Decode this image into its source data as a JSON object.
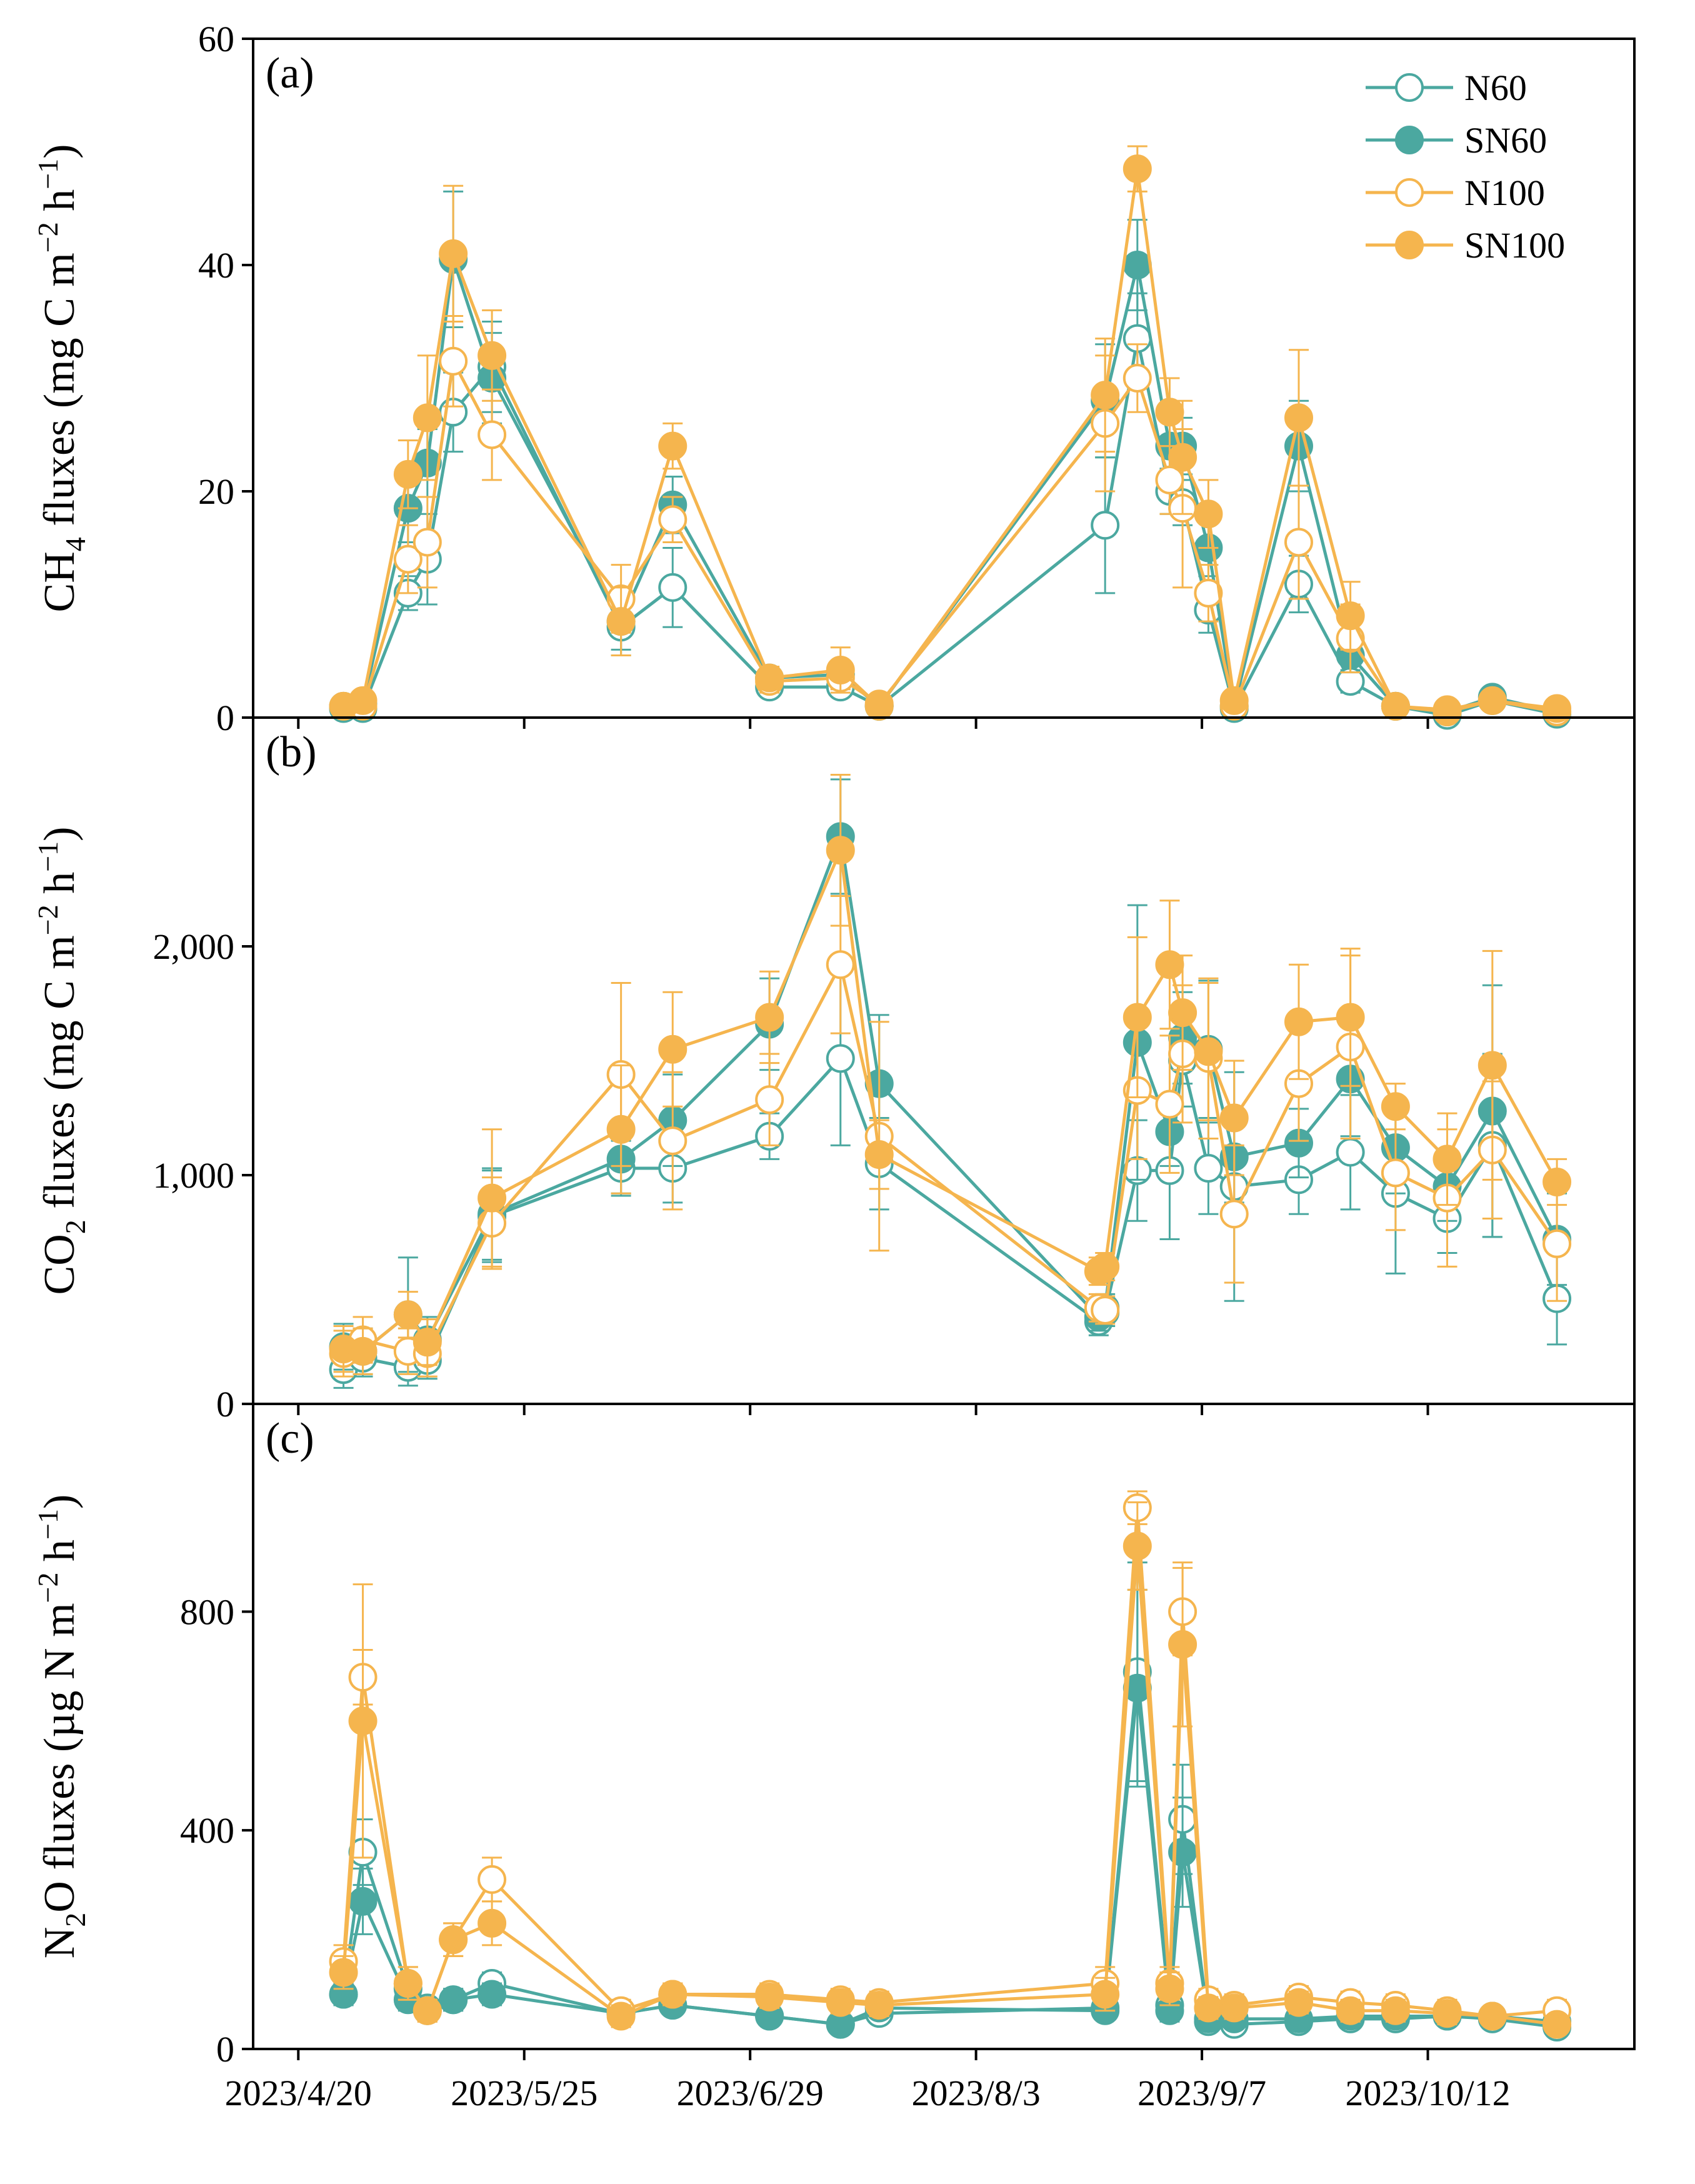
{
  "colors": {
    "teal": "#4BA8A0",
    "orange": "#F5B54E"
  },
  "legend": [
    {
      "name": "N60",
      "color": "#4BA8A0",
      "filled": false
    },
    {
      "name": "SN60",
      "color": "#4BA8A0",
      "filled": true
    },
    {
      "name": "N100",
      "color": "#F5B54E",
      "filled": false
    },
    {
      "name": "SN100",
      "color": "#F5B54E",
      "filled": true
    }
  ],
  "chart_data": [
    {
      "type": "line",
      "panel_label": "(a)",
      "ylabel": "CH4 fluxes (mg C m−2 h−1)",
      "ylabel_parts": {
        "pre": "CH",
        "sub": "4",
        "mid": " fluxes (mg C m",
        "sup1": "−2",
        "mid2": " h",
        "sup2": "−1",
        "post": ")"
      },
      "ylim": [
        0,
        60
      ],
      "yticks": [
        0,
        20,
        40,
        60
      ],
      "ytick_labels": [
        "0",
        "20",
        "40",
        "60"
      ],
      "x_days": [
        7,
        10,
        17,
        20,
        24,
        30,
        50,
        58,
        73,
        84,
        90,
        125,
        130,
        135,
        137,
        141,
        145,
        155,
        163,
        170,
        178,
        185,
        195
      ],
      "series": [
        {
          "name": "N60",
          "values": [
            0.8,
            0.8,
            11,
            14,
            27,
            31,
            8,
            11.5,
            2.7,
            2.7,
            1.0,
            17,
            33.5,
            20,
            19,
            9.5,
            0.8,
            11.8,
            3.2,
            1.0,
            0.2,
            1.5,
            0.3
          ],
          "errors": [
            0.5,
            0.5,
            1.5,
            4,
            3.5,
            4,
            2.5,
            3.5,
            0.8,
            0.8,
            0.3,
            6,
            4,
            2,
            2,
            2,
            0.3,
            2.5,
            1,
            0.3,
            0.2,
            0.4,
            0.2
          ]
        },
        {
          "name": "SN60",
          "values": [
            1.0,
            1.2,
            18.5,
            22.5,
            40.5,
            30,
            8.5,
            18.8,
            3.5,
            3.8,
            1.0,
            28,
            40,
            24,
            24,
            15,
            1.0,
            24,
            5.5,
            1.0,
            0.5,
            1.8,
            0.5
          ],
          "errors": [
            0.5,
            0.5,
            3,
            3,
            6,
            4,
            2.5,
            2.5,
            0.8,
            1,
            0.3,
            5,
            4,
            2.5,
            2.5,
            2.5,
            0.4,
            4,
            1.5,
            0.3,
            0.2,
            0.4,
            0.2
          ]
        },
        {
          "name": "N100",
          "values": [
            1.0,
            1.0,
            14,
            15.5,
            31.5,
            25,
            10.5,
            17.5,
            3.2,
            3.5,
            1.2,
            26,
            30,
            21,
            18.5,
            11,
            1.0,
            15.5,
            7,
            1.0,
            0.5,
            1.5,
            0.5
          ],
          "errors": [
            0.5,
            0.5,
            3,
            4,
            4,
            4,
            3,
            2,
            1,
            1,
            0.3,
            6,
            3,
            3,
            7,
            2.5,
            0.4,
            5,
            3,
            0.3,
            0.2,
            0.4,
            0.2
          ]
        },
        {
          "name": "SN100",
          "values": [
            1.0,
            1.5,
            21.5,
            26.5,
            41,
            32,
            8.5,
            24,
            3.5,
            4.2,
            1.0,
            28.5,
            48.5,
            27,
            23,
            18,
            1.5,
            26.5,
            9,
            1.0,
            0.7,
            1.5,
            0.8
          ],
          "errors": [
            0.5,
            0.5,
            3,
            5.5,
            6,
            4,
            3,
            2,
            1,
            2,
            0.3,
            5,
            2,
            3,
            5,
            3,
            0.4,
            6,
            3,
            0.3,
            0.2,
            0.4,
            0.2
          ]
        }
      ]
    },
    {
      "type": "line",
      "panel_label": "(b)",
      "ylabel": "CO2 fluxes (mg C m−2 h−1)",
      "ylabel_parts": {
        "pre": "CO",
        "sub": "2",
        "mid": " fluxes (mg C m",
        "sup1": "−2",
        "mid2": " h",
        "sup2": "−1",
        "post": ")"
      },
      "ylim": [
        0,
        3000
      ],
      "yticks": [
        0,
        1000,
        2000
      ],
      "ytick_labels": [
        "0",
        "1,000",
        "2,000"
      ],
      "x_days": [
        7,
        10,
        17,
        20,
        30,
        50,
        58,
        73,
        84,
        90,
        124,
        125,
        130,
        135,
        137,
        141,
        145,
        155,
        163,
        170,
        178,
        185,
        195
      ],
      "series": [
        {
          "name": "N60",
          "values": [
            150,
            200,
            160,
            190,
            820,
            1030,
            1030,
            1170,
            1510,
            1050,
            360,
            400,
            1020,
            1020,
            1500,
            1030,
            950,
            980,
            1100,
            920,
            810,
            1130,
            460
          ],
          "errors": [
            80,
            80,
            80,
            80,
            200,
            120,
            150,
            100,
            380,
            200,
            60,
            60,
            220,
            300,
            200,
            200,
            500,
            150,
            250,
            350,
            150,
            400,
            200
          ]
        },
        {
          "name": "SN60",
          "values": [
            250,
            230,
            390,
            280,
            830,
            1070,
            1240,
            1660,
            2480,
            1400,
            380,
            420,
            1580,
            1190,
            1600,
            1550,
            1080,
            1140,
            1420,
            1120,
            950,
            1280,
            720
          ],
          "errors": [
            100,
            100,
            250,
            100,
            200,
            150,
            200,
            200,
            250,
            300,
            60,
            60,
            600,
            150,
            200,
            300,
            200,
            150,
            250,
            200,
            150,
            550,
            200
          ]
        },
        {
          "name": "N100",
          "values": [
            220,
            280,
            230,
            220,
            790,
            1440,
            1150,
            1330,
            1920,
            1170,
            420,
            410,
            1370,
            1310,
            1530,
            1510,
            830,
            1400,
            1560,
            1010,
            900,
            1110,
            700
          ],
          "errors": [
            100,
            100,
            100,
            100,
            200,
            400,
            300,
            200,
            300,
            500,
            60,
            60,
            300,
            300,
            300,
            350,
            300,
            250,
            400,
            250,
            300,
            300,
            250
          ]
        },
        {
          "name": "SN100",
          "values": [
            240,
            230,
            390,
            270,
            900,
            1200,
            1550,
            1690,
            2420,
            1090,
            580,
            600,
            1690,
            1920,
            1710,
            1540,
            1250,
            1670,
            1690,
            1300,
            1070,
            1480,
            970
          ],
          "errors": [
            100,
            100,
            100,
            100,
            300,
            280,
            250,
            200,
            330,
            150,
            60,
            60,
            350,
            280,
            250,
            300,
            250,
            250,
            300,
            100,
            200,
            500,
            100
          ]
        }
      ]
    },
    {
      "type": "line",
      "panel_label": "(c)",
      "ylabel": "N2O fluxes (µg N m−2 h−1)",
      "ylabel_parts": {
        "pre": "N",
        "sub": "2",
        "mid": "O fluxes (µg N m",
        "sup1": "−2",
        "mid2": " h",
        "sup2": "−1",
        "post": ")"
      },
      "ylim": [
        0,
        1180
      ],
      "yticks": [
        0,
        400,
        800
      ],
      "ytick_labels": [
        "0",
        "400",
        "800"
      ],
      "x_days": [
        7,
        10,
        17,
        20,
        24,
        30,
        50,
        58,
        73,
        84,
        90,
        125,
        130,
        135,
        137,
        141,
        145,
        155,
        163,
        170,
        178,
        185,
        195
      ],
      "series": [
        {
          "name": "N60",
          "values": [
            100,
            360,
            110,
            75,
            90,
            120,
            65,
            80,
            60,
            45,
            65,
            75,
            690,
            80,
            420,
            50,
            45,
            50,
            55,
            55,
            60,
            55,
            40
          ],
          "errors": [
            20,
            60,
            20,
            15,
            20,
            20,
            15,
            15,
            15,
            10,
            15,
            15,
            200,
            20,
            100,
            15,
            15,
            15,
            15,
            15,
            15,
            15,
            10
          ]
        },
        {
          "name": "SN60",
          "values": [
            100,
            270,
            90,
            70,
            90,
            100,
            65,
            80,
            60,
            45,
            75,
            70,
            660,
            70,
            360,
            55,
            55,
            55,
            60,
            60,
            60,
            60,
            50
          ],
          "errors": [
            20,
            60,
            20,
            15,
            20,
            20,
            15,
            15,
            15,
            10,
            15,
            15,
            180,
            20,
            100,
            15,
            15,
            15,
            15,
            15,
            15,
            15,
            10
          ]
        },
        {
          "name": "N100",
          "values": [
            160,
            680,
            120,
            70,
            200,
            310,
            70,
            100,
            100,
            90,
            85,
            120,
            990,
            120,
            800,
            90,
            80,
            95,
            85,
            80,
            70,
            60,
            70
          ],
          "errors": [
            30,
            50,
            30,
            20,
            30,
            40,
            20,
            20,
            20,
            20,
            20,
            30,
            30,
            30,
            80,
            20,
            20,
            20,
            20,
            20,
            20,
            15,
            20
          ]
        },
        {
          "name": "SN100",
          "values": [
            140,
            600,
            120,
            70,
            200,
            230,
            60,
            100,
            95,
            85,
            80,
            100,
            920,
            110,
            740,
            75,
            75,
            85,
            70,
            70,
            65,
            60,
            45
          ],
          "errors": [
            30,
            250,
            30,
            20,
            30,
            40,
            20,
            20,
            20,
            20,
            20,
            30,
            80,
            30,
            150,
            20,
            20,
            20,
            20,
            20,
            20,
            15,
            15
          ]
        }
      ]
    }
  ],
  "x_axis": {
    "xlim_days": [
      -7,
      207
    ],
    "tick_days": [
      0,
      35,
      70,
      105,
      140,
      175
    ],
    "tick_labels": [
      "2023/4/20",
      "2023/5/25",
      "2023/6/29",
      "2023/8/3",
      "2023/9/7",
      "2023/10/12"
    ]
  }
}
